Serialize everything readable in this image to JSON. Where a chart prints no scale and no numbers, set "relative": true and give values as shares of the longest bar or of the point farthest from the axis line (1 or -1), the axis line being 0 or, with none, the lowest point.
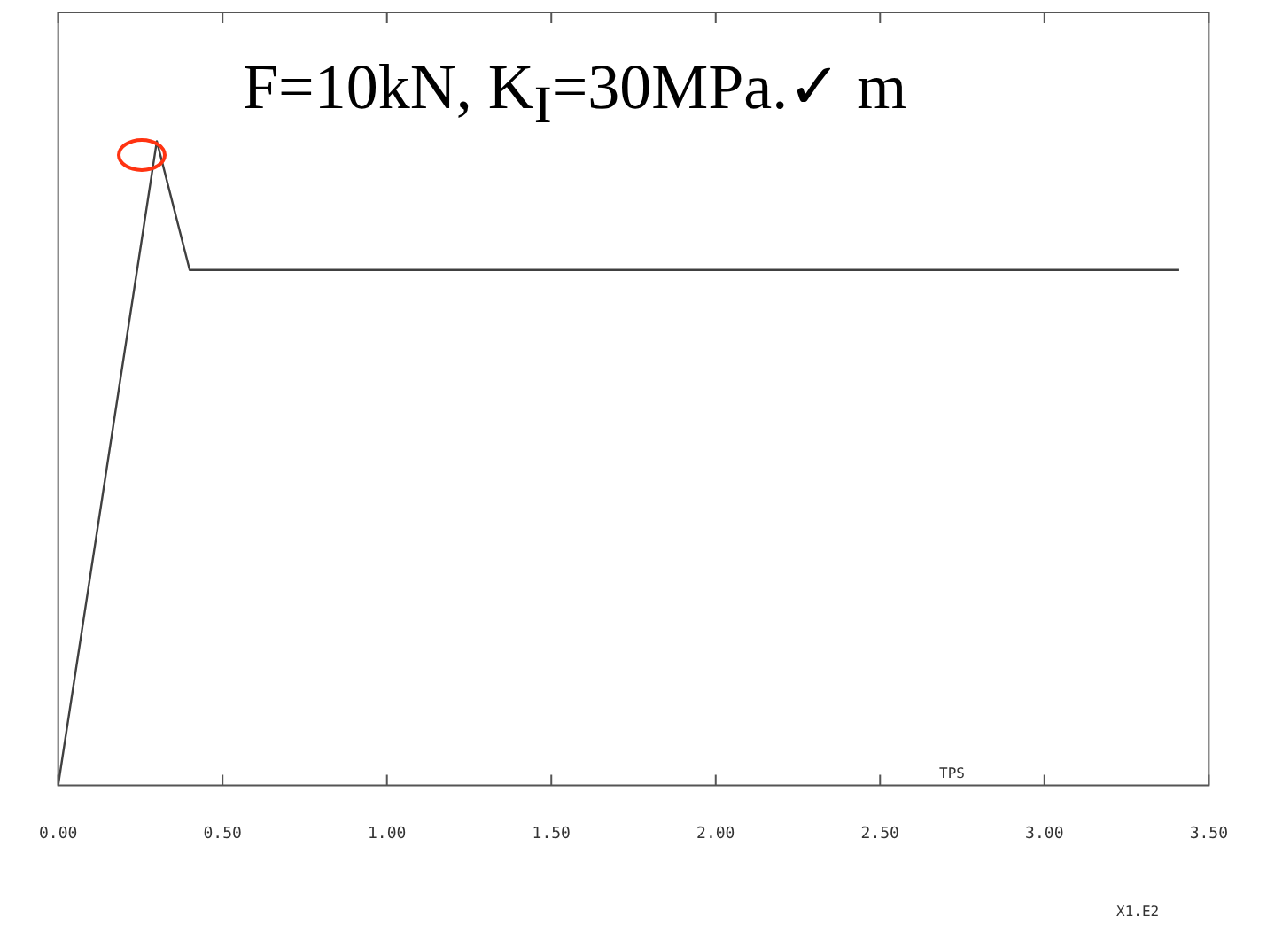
{
  "chart_data": {
    "type": "line",
    "title": "F=10kN, K$_{I}$=30MPa.✓ m",
    "xlabel": "X1.E2",
    "annotations": [
      "TPS"
    ],
    "x": [
      0,
      0.3,
      0.4,
      3.41
    ],
    "series": [
      {
        "color": "#404040",
        "values": [
          0,
          1,
          0.8,
          0.8
        ]
      }
    ],
    "relative": true,
    "xlim": [
      0,
      3.5
    ],
    "xticks": [
      {
        "value": 0,
        "label": "0.00"
      },
      {
        "value": 0.5,
        "label": "0.50"
      },
      {
        "value": 1,
        "label": "1.00"
      },
      {
        "value": 1.5,
        "label": "1.50"
      },
      {
        "value": 2,
        "label": "2.00"
      },
      {
        "value": 2.5,
        "label": "2.50"
      },
      {
        "value": 3,
        "label": "3.00"
      },
      {
        "value": 3.5,
        "label": "3.50"
      }
    ],
    "grid": false,
    "legend": false,
    "marker": "none",
    "line_style": "solid"
  }
}
